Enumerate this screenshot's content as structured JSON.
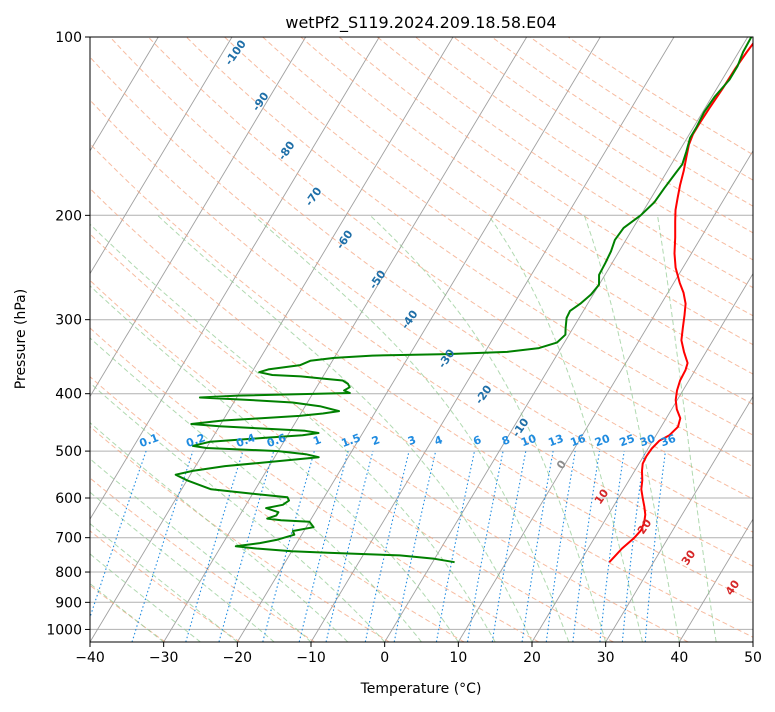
{
  "chart_data": {
    "type": "line",
    "title": "wetPf2_S119.2024.209.18.58.E04",
    "xlabel": "Temperature (°C)",
    "ylabel": "Pressure (hPa)",
    "xlim": [
      -40,
      50
    ],
    "ylim": [
      1050,
      100
    ],
    "y_scale": "log",
    "grid": true,
    "x_ticks": [
      -40,
      -30,
      -20,
      -10,
      0,
      10,
      20,
      30,
      40,
      50
    ],
    "y_ticks": [
      100,
      200,
      300,
      400,
      500,
      600,
      700,
      800,
      900,
      1000
    ],
    "colors": {
      "temperature": "#ff0000",
      "dewpoint": "#008000",
      "isotherm": "#a0a0a0",
      "dry_adiabat": "#f4a582",
      "moist_adiabat": "#8fc98f",
      "mixing_ratio": "#1f8be0",
      "dry_label": "#d62728",
      "moist_label": "#1f6fa8",
      "axes": "#000000"
    },
    "series": [
      {
        "key": "temperature",
        "points": [
          [
            24.0,
            770
          ],
          [
            24.3,
            750
          ],
          [
            24.6,
            730
          ],
          [
            25.4,
            700
          ],
          [
            25.7,
            680
          ],
          [
            25.5,
            660
          ],
          [
            25.0,
            640
          ],
          [
            24.2,
            620
          ],
          [
            23.3,
            600
          ],
          [
            22.4,
            580
          ],
          [
            21.8,
            560
          ],
          [
            21.0,
            540
          ],
          [
            20.5,
            525
          ],
          [
            20.4,
            510
          ],
          [
            20.5,
            495
          ],
          [
            20.9,
            480
          ],
          [
            21.8,
            470
          ],
          [
            22.3,
            455
          ],
          [
            21.9,
            440
          ],
          [
            20.7,
            425
          ],
          [
            19.8,
            410
          ],
          [
            19.2,
            395
          ],
          [
            18.8,
            380
          ],
          [
            18.7,
            365
          ],
          [
            18.4,
            355
          ],
          [
            17.0,
            340
          ],
          [
            15.7,
            325
          ],
          [
            14.9,
            310
          ],
          [
            14.1,
            295
          ],
          [
            13.3,
            282
          ],
          [
            12.1,
            270
          ],
          [
            10.8,
            260
          ],
          [
            9.0,
            245
          ],
          [
            7.7,
            232
          ],
          [
            6.5,
            218
          ],
          [
            5.2,
            205
          ],
          [
            4.3,
            196
          ],
          [
            3.6,
            187
          ],
          [
            2.9,
            178
          ],
          [
            2.2,
            168
          ],
          [
            1.5,
            160
          ],
          [
            0.8,
            152
          ],
          [
            0.5,
            146
          ],
          [
            0.5,
            140
          ],
          [
            0.6,
            132
          ],
          [
            0.8,
            122
          ],
          [
            0.9,
            113
          ],
          [
            1.1,
            106
          ],
          [
            1.4,
            100
          ]
        ]
      },
      {
        "key": "dewpoint",
        "points": [
          [
            3.0,
            770
          ],
          [
            0.0,
            760
          ],
          [
            -5.0,
            750
          ],
          [
            -15.0,
            742
          ],
          [
            -20.0,
            738
          ],
          [
            -25.0,
            730
          ],
          [
            -28.0,
            724
          ],
          [
            -25.0,
            715
          ],
          [
            -23.0,
            706
          ],
          [
            -21.0,
            692
          ],
          [
            -21.5,
            682
          ],
          [
            -19.0,
            672
          ],
          [
            -20.0,
            658
          ],
          [
            -24.0,
            654
          ],
          [
            -26.0,
            650
          ],
          [
            -25.0,
            642
          ],
          [
            -25.0,
            634
          ],
          [
            -27.0,
            624
          ],
          [
            -25.0,
            616
          ],
          [
            -24.5,
            606
          ],
          [
            -25.0,
            598
          ],
          [
            -30.0,
            590
          ],
          [
            -36.0,
            580
          ],
          [
            -38.0,
            570
          ],
          [
            -40.0,
            560
          ],
          [
            -42.0,
            548
          ],
          [
            -40.0,
            540
          ],
          [
            -36.0,
            530
          ],
          [
            -32.0,
            524
          ],
          [
            -28.0,
            518
          ],
          [
            -24.0,
            512
          ],
          [
            -26.0,
            506
          ],
          [
            -30.0,
            500
          ],
          [
            -40.0,
            494
          ],
          [
            -42.0,
            490
          ],
          [
            -40.0,
            482
          ],
          [
            -33.0,
            475
          ],
          [
            -28.0,
            470
          ],
          [
            -26.0,
            466
          ],
          [
            -28.0,
            462
          ],
          [
            -34.0,
            458
          ],
          [
            -40.0,
            454
          ],
          [
            -44.0,
            450
          ],
          [
            -40.0,
            444
          ],
          [
            -35.0,
            440
          ],
          [
            -30.0,
            436
          ],
          [
            -27.0,
            432
          ],
          [
            -25.0,
            428
          ],
          [
            -28.0,
            420
          ],
          [
            -32.0,
            414
          ],
          [
            -38.0,
            410
          ],
          [
            -45.0,
            406
          ],
          [
            -40.0,
            403
          ],
          [
            -25.0,
            399
          ],
          [
            -26.0,
            395
          ],
          [
            -25.5,
            390
          ],
          [
            -26.0,
            385
          ],
          [
            -27.0,
            380
          ],
          [
            -30.0,
            377
          ],
          [
            -33.0,
            374
          ],
          [
            -37.0,
            372
          ],
          [
            -39.0,
            368
          ],
          [
            -38.0,
            364
          ],
          [
            -34.0,
            358
          ],
          [
            -33.0,
            352
          ],
          [
            -30.0,
            348
          ],
          [
            -25.0,
            345
          ],
          [
            -15.0,
            343
          ],
          [
            -7.0,
            340
          ],
          [
            -3.0,
            335
          ],
          [
            -1.0,
            328
          ],
          [
            -0.5,
            318
          ],
          [
            -1.0,
            310
          ],
          [
            -1.7,
            298
          ],
          [
            -1.8,
            290
          ],
          [
            -1.0,
            282
          ],
          [
            -0.3,
            272
          ],
          [
            0.0,
            262
          ],
          [
            -0.8,
            252
          ],
          [
            -0.9,
            241
          ],
          [
            -1.1,
            230
          ],
          [
            -1.5,
            220
          ],
          [
            -1.3,
            210
          ],
          [
            0.0,
            200
          ],
          [
            0.8,
            190
          ],
          [
            1.0,
            180
          ],
          [
            1.3,
            170
          ],
          [
            1.5,
            164
          ],
          [
            1.0,
            156
          ],
          [
            0.4,
            148
          ],
          [
            0.4,
            142
          ],
          [
            0.2,
            134
          ],
          [
            0.4,
            126
          ],
          [
            1.0,
            118
          ],
          [
            1.0,
            112
          ],
          [
            0.6,
            106
          ],
          [
            0.5,
            100
          ]
        ]
      }
    ],
    "isotherm_labels": [
      "-100",
      "-90",
      "-80",
      "-70",
      "-60",
      "-50",
      "-40",
      "-30",
      "-20",
      "-10",
      "0",
      "10",
      "20",
      "30",
      "40"
    ],
    "mixing_ratio_labels": [
      "0.1",
      "0.2",
      "0.4",
      "0.6",
      "1",
      "1.5",
      "2",
      "3",
      "4",
      "6",
      "8",
      "10",
      "13",
      "16",
      "20",
      "25",
      "30",
      "36"
    ],
    "mixing_ratio_values": [
      0.1,
      0.2,
      0.4,
      0.6,
      1,
      1.5,
      2,
      3,
      4,
      6,
      8,
      10,
      13,
      16,
      20,
      25,
      30,
      36
    ]
  }
}
